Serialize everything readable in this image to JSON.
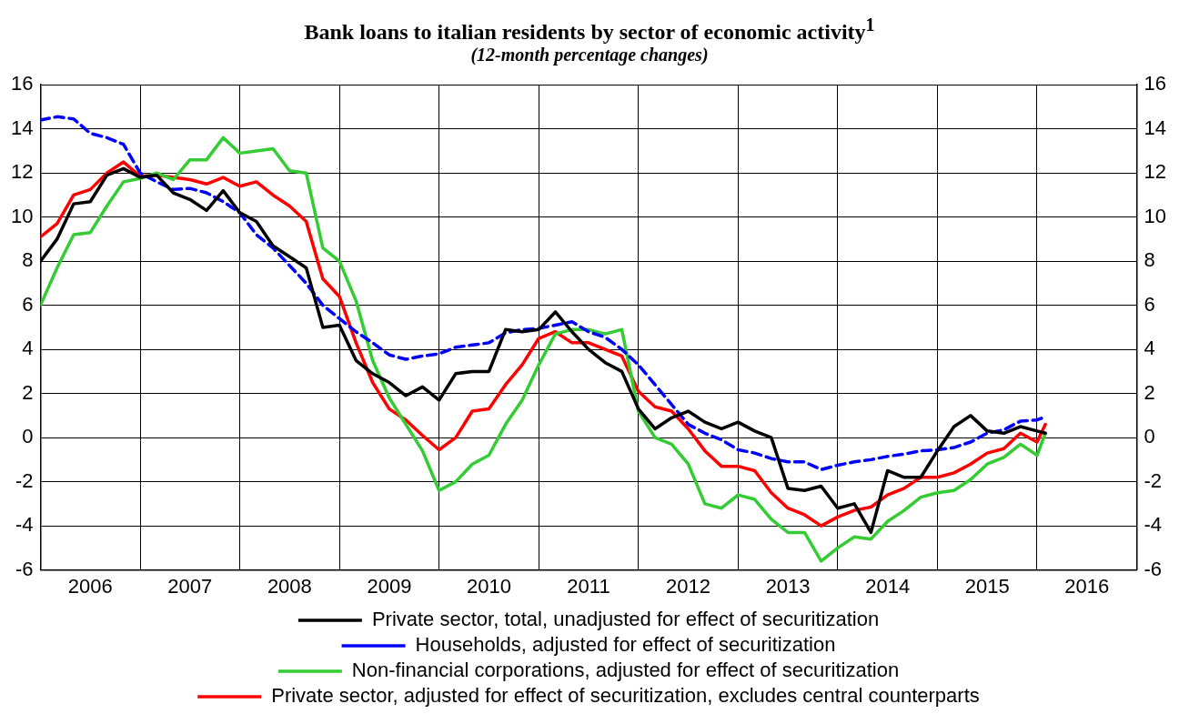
{
  "chart_data": {
    "type": "line",
    "title": "Bank loans to italian residents by sector of economic activity$^{1}$",
    "subtitle": "(12-month percentage changes)",
    "x": [
      "2006-01",
      "2006-03",
      "2006-05",
      "2006-07",
      "2006-09",
      "2006-11",
      "2007-01",
      "2007-03",
      "2007-05",
      "2007-07",
      "2007-09",
      "2007-11",
      "2008-01",
      "2008-03",
      "2008-05",
      "2008-07",
      "2008-09",
      "2008-11",
      "2009-01",
      "2009-03",
      "2009-05",
      "2009-07",
      "2009-09",
      "2009-11",
      "2010-01",
      "2010-03",
      "2010-05",
      "2010-07",
      "2010-09",
      "2010-11",
      "2011-01",
      "2011-03",
      "2011-05",
      "2011-07",
      "2011-09",
      "2011-11",
      "2012-01",
      "2012-03",
      "2012-05",
      "2012-07",
      "2012-09",
      "2012-11",
      "2013-01",
      "2013-03",
      "2013-05",
      "2013-07",
      "2013-09",
      "2013-11",
      "2014-01",
      "2014-03",
      "2014-05",
      "2014-07",
      "2014-09",
      "2014-11",
      "2015-01",
      "2015-03",
      "2015-05",
      "2015-07",
      "2015-09",
      "2015-11",
      "2016-01",
      "2016-02"
    ],
    "series": [
      {
        "name": "Private sector, total, unadjusted for effect of securitization",
        "color": "#000000",
        "values": [
          8.0,
          9.0,
          10.6,
          10.7,
          11.9,
          12.2,
          11.8,
          11.9,
          11.1,
          10.8,
          10.3,
          11.2,
          10.2,
          9.8,
          8.7,
          8.2,
          7.7,
          5.0,
          5.1,
          3.5,
          2.9,
          2.5,
          1.9,
          2.3,
          1.7,
          2.9,
          3.0,
          3.0,
          4.9,
          4.8,
          4.9,
          5.7,
          4.8,
          4.0,
          3.4,
          3.0,
          1.3,
          0.4,
          0.9,
          1.2,
          0.7,
          0.4,
          0.7,
          0.3,
          0.0,
          -2.3,
          -2.4,
          -2.2,
          -3.2,
          -3.0,
          -4.3,
          -1.5,
          -1.8,
          -1.8,
          -0.6,
          0.5,
          1.0,
          0.3,
          0.2,
          0.5,
          0.3,
          0.2
        ]
      },
      {
        "name": "Households, adjusted for effect of securitization",
        "color": "#0000ff",
        "line_style": "dashed",
        "values": [
          14.4,
          14.55,
          14.45,
          13.8,
          13.6,
          13.3,
          12.0,
          11.6,
          11.25,
          11.3,
          11.1,
          10.7,
          10.2,
          9.2,
          8.6,
          7.8,
          7.0,
          6.0,
          5.4,
          4.8,
          4.3,
          3.75,
          3.55,
          3.7,
          3.8,
          4.1,
          4.2,
          4.3,
          4.75,
          4.9,
          4.95,
          5.1,
          5.25,
          4.8,
          4.55,
          4.0,
          3.3,
          2.4,
          1.5,
          0.6,
          0.2,
          -0.1,
          -0.55,
          -0.7,
          -0.95,
          -1.1,
          -1.1,
          -1.45,
          -1.25,
          -1.1,
          -1.0,
          -0.85,
          -0.75,
          -0.6,
          -0.55,
          -0.45,
          -0.2,
          0.2,
          0.35,
          0.75,
          0.8,
          0.95
        ]
      },
      {
        "name": "Non-financial corporations, adjusted for effect of securitization",
        "color": "#33cc33",
        "values": [
          6.0,
          7.7,
          9.2,
          9.3,
          10.5,
          11.6,
          11.75,
          12.0,
          11.7,
          12.6,
          12.6,
          13.6,
          12.9,
          13.0,
          13.1,
          12.1,
          12.0,
          8.6,
          8.0,
          6.2,
          3.5,
          1.8,
          0.6,
          -0.6,
          -2.4,
          -2.0,
          -1.2,
          -0.8,
          0.6,
          1.7,
          3.3,
          4.7,
          4.9,
          4.9,
          4.7,
          4.9,
          1.2,
          0.0,
          -0.3,
          -1.2,
          -3.0,
          -3.2,
          -2.6,
          -2.8,
          -3.7,
          -4.3,
          -4.3,
          -5.6,
          -5.0,
          -4.5,
          -4.6,
          -3.8,
          -3.3,
          -2.7,
          -2.5,
          -2.4,
          -1.9,
          -1.2,
          -0.9,
          -0.3,
          -0.8,
          0.2
        ]
      },
      {
        "name": "Private sector, adjusted for effect of securitization, excludes central counterparts",
        "color": "#ff0000",
        "values": [
          9.1,
          9.7,
          11.0,
          11.25,
          12.0,
          12.5,
          11.85,
          11.9,
          11.8,
          11.7,
          11.5,
          11.8,
          11.4,
          11.6,
          11.0,
          10.5,
          9.8,
          7.2,
          6.4,
          4.3,
          2.5,
          1.3,
          0.8,
          0.1,
          -0.55,
          0.0,
          1.2,
          1.3,
          2.4,
          3.3,
          4.5,
          4.8,
          4.3,
          4.3,
          4.0,
          3.7,
          2.1,
          1.4,
          1.2,
          0.4,
          -0.6,
          -1.3,
          -1.3,
          -1.5,
          -2.5,
          -3.2,
          -3.5,
          -4.0,
          -3.6,
          -3.3,
          -3.15,
          -2.6,
          -2.3,
          -1.8,
          -1.8,
          -1.6,
          -1.2,
          -0.7,
          -0.5,
          0.2,
          -0.2,
          0.6
        ]
      }
    ],
    "xlim": [
      "2006-01",
      "2017-01"
    ],
    "xticks": [
      {
        "value": "2006-01",
        "label": null
      },
      {
        "value": "2006-07",
        "label": "2006"
      },
      {
        "value": "2007-01",
        "label": null
      },
      {
        "value": "2007-07",
        "label": "2007"
      },
      {
        "value": "2008-01",
        "label": null
      },
      {
        "value": "2008-07",
        "label": "2008"
      },
      {
        "value": "2009-01",
        "label": null
      },
      {
        "value": "2009-07",
        "label": "2009"
      },
      {
        "value": "2010-01",
        "label": null
      },
      {
        "value": "2010-07",
        "label": "2010"
      },
      {
        "value": "2011-01",
        "label": null
      },
      {
        "value": "2011-07",
        "label": "2011"
      },
      {
        "value": "2012-01",
        "label": null
      },
      {
        "value": "2012-07",
        "label": "2012"
      },
      {
        "value": "2013-01",
        "label": null
      },
      {
        "value": "2013-07",
        "label": "2013"
      },
      {
        "value": "2014-01",
        "label": null
      },
      {
        "value": "2014-07",
        "label": "2014"
      },
      {
        "value": "2015-01",
        "label": null
      },
      {
        "value": "2015-07",
        "label": "2015"
      },
      {
        "value": "2016-01",
        "label": null
      },
      {
        "value": "2016-07",
        "label": "2016"
      },
      {
        "value": "2017-01",
        "label": null
      }
    ],
    "ylim": [
      -6,
      16
    ],
    "yticks": [
      -6,
      -4,
      -2,
      0,
      2,
      4,
      6,
      8,
      10,
      12,
      14,
      16
    ],
    "y2lim": [
      -6,
      16
    ],
    "y2ticks": [
      -6,
      -4,
      -2,
      0,
      2,
      4,
      6,
      8,
      10,
      12,
      14,
      16
    ],
    "grid": true,
    "legend": "bottom",
    "marker": "none",
    "line_style": "solid"
  }
}
